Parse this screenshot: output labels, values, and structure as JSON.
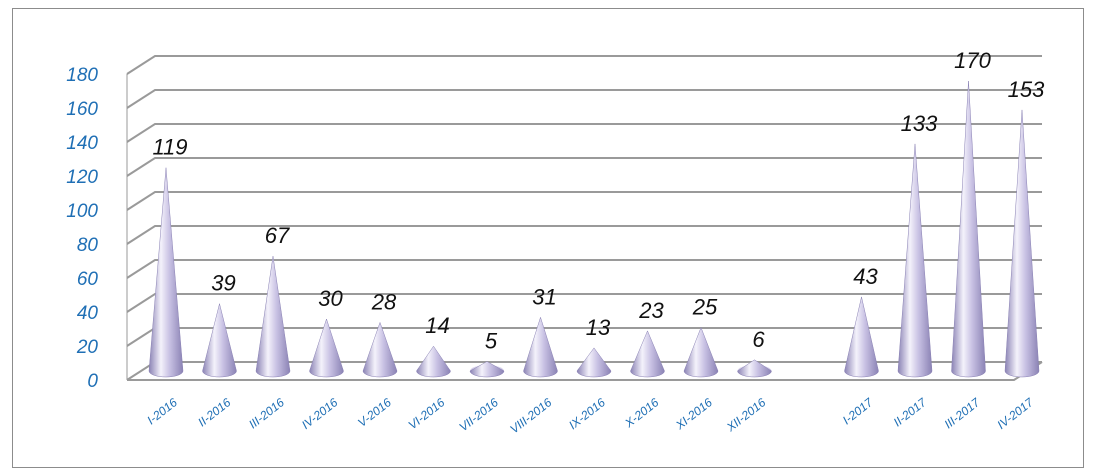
{
  "chart_data": {
    "type": "bar",
    "style": "3d-cone",
    "categories": [
      "I-2016",
      "II-2016",
      "III-2016",
      "IV-2016",
      "V-2016",
      "VI-2016",
      "VII-2016",
      "VIII-2016",
      "IX-2016",
      "X-2016",
      "XI-2016",
      "XII-2016",
      "",
      "I-2017",
      "II-2017",
      "III-2017",
      "IV-2017"
    ],
    "values": [
      119,
      39,
      67,
      30,
      28,
      14,
      5,
      31,
      13,
      23,
      25,
      6,
      null,
      43,
      133,
      170,
      153
    ],
    "data_labels": [
      "119",
      "39",
      "67",
      "30",
      "28",
      "14",
      "5",
      "31",
      "13",
      "23",
      "25",
      "6",
      "",
      "43",
      "133",
      "170",
      "153"
    ],
    "y_ticks": [
      "0",
      "20",
      "40",
      "60",
      "80",
      "100",
      "120",
      "140",
      "160",
      "180"
    ],
    "ylim": [
      0,
      180
    ],
    "grid": true,
    "legend": "none",
    "title": "",
    "xlabel": "",
    "ylabel": "",
    "colors": {
      "cone": "#b8b0d8",
      "cone_light": "#f4f2fb",
      "cone_dark": "#8a82b4",
      "tick_text": "#1f6fb5",
      "gridline": "#9a9a9a"
    }
  }
}
